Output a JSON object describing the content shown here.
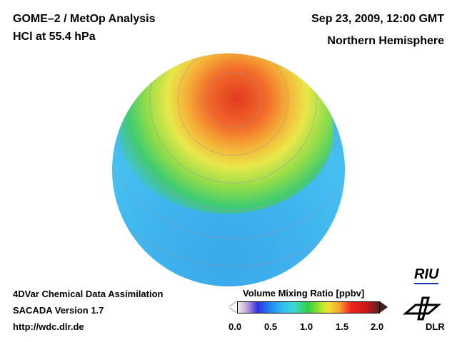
{
  "header": {
    "title": "GOME–2 / MetOp Analysis",
    "subtitle": "HCl at 55.4 hPa",
    "datetime": "Sep 23, 2009, 12:00 GMT",
    "region": "Northern Hemisphere"
  },
  "footer": {
    "line1": "4DVar Chemical Data Assimilation",
    "line2": "SACADA Version 1.7",
    "url": "http://wdc.dlr.de"
  },
  "colorbar": {
    "title": "Volume Mixing Ratio [ppbv]",
    "ticks": [
      "0.0",
      "0.5",
      "1.0",
      "1.5",
      "2.0"
    ],
    "min": 0.0,
    "max": 2.0
  },
  "logos": {
    "riu": "RIU",
    "dlr": "DLR"
  }
}
